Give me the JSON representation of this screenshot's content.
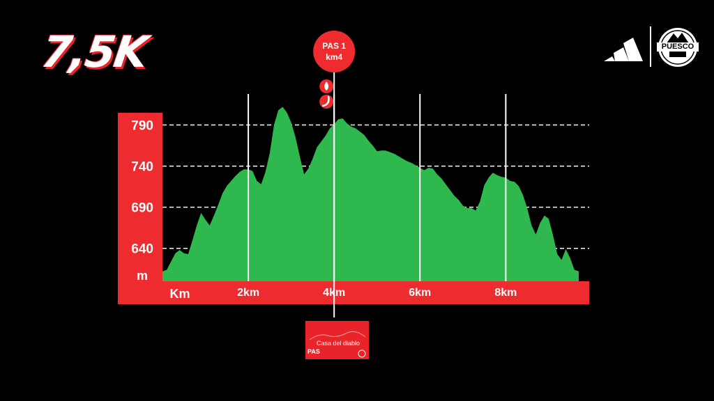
{
  "header": {
    "distance": "7,5K",
    "brand_logo": "adidas-logo",
    "race_logo_text": "PUESCO"
  },
  "checkpoint": {
    "name": "PAS 1",
    "km": "km4",
    "icons": [
      "water-drop-icon",
      "banana-icon"
    ],
    "card_title": "Casa del diablo",
    "card_code": "PAS"
  },
  "colors": {
    "accent": "#ee2b2f",
    "profile_fill": "#2fb84e",
    "background": "#000000"
  },
  "chart_data": {
    "type": "area",
    "title": "",
    "xlabel": "Km",
    "ylabel": "m",
    "xlim": [
      0,
      9.7
    ],
    "ylim": [
      600,
      815
    ],
    "y_ticks": [
      640,
      690,
      740,
      790
    ],
    "y_tick_labels": [
      "640",
      "690",
      "740",
      "790"
    ],
    "x_ticks": [
      2,
      4,
      6,
      8
    ],
    "x_tick_labels": [
      "2km",
      "4km",
      "6km",
      "8km"
    ],
    "grid": "dashed horizontal at y ticks, solid vertical at x ticks",
    "checkpoint_x": 4,
    "series": [
      {
        "values_x": [
          0,
          0.1,
          0.2,
          0.3,
          0.4,
          0.5,
          0.6,
          0.7,
          0.8,
          0.9,
          1.0,
          1.1,
          1.2,
          1.3,
          1.4,
          1.5,
          1.6,
          1.7,
          1.8,
          1.9,
          2.0,
          2.1,
          2.2,
          2.3,
          2.4,
          2.5,
          2.6,
          2.7,
          2.8,
          2.9,
          3.0,
          3.1,
          3.2,
          3.3,
          3.4,
          3.5,
          3.6,
          3.7,
          3.8,
          3.9,
          4.0,
          4.1,
          4.2,
          4.3,
          4.4,
          4.5,
          4.6,
          4.7,
          4.8,
          4.9,
          5.0,
          5.1,
          5.2,
          5.3,
          5.4,
          5.5,
          5.6,
          5.7,
          5.8,
          5.9,
          6.0,
          6.1,
          6.2,
          6.3,
          6.4,
          6.5,
          6.6,
          6.7,
          6.8,
          6.9,
          7.0,
          7.1,
          7.2,
          7.3,
          7.4,
          7.5,
          7.6,
          7.7,
          7.8,
          7.9,
          8.0,
          8.1,
          8.2,
          8.3,
          8.4,
          8.5,
          8.6,
          8.7,
          8.8,
          8.9,
          9.0,
          9.1,
          9.2,
          9.3,
          9.4,
          9.5,
          9.6,
          9.7
        ],
        "values_y": [
          612,
          614,
          624,
          634,
          638,
          634,
          633,
          650,
          668,
          683,
          675,
          668,
          680,
          693,
          707,
          716,
          722,
          728,
          733,
          736,
          736,
          734,
          722,
          718,
          733,
          756,
          790,
          808,
          812,
          805,
          793,
          775,
          752,
          730,
          737,
          749,
          763,
          770,
          777,
          786,
          791,
          797,
          798,
          792,
          788,
          786,
          782,
          778,
          771,
          765,
          758,
          759,
          759,
          757,
          755,
          752,
          749,
          746,
          744,
          741,
          738,
          735,
          738,
          737,
          730,
          725,
          718,
          711,
          704,
          699,
          692,
          689,
          689,
          686,
          697,
          717,
          726,
          732,
          729,
          727,
          726,
          722,
          721,
          716,
          705,
          689,
          668,
          657,
          671,
          680,
          676,
          656,
          633,
          626,
          639,
          628,
          614,
          612
        ]
      }
    ]
  }
}
